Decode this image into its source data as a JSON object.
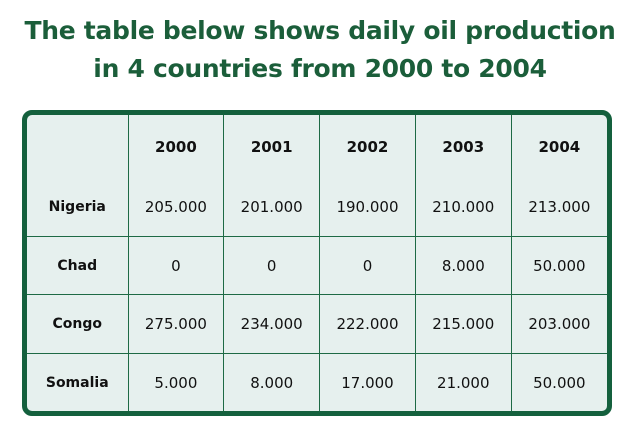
{
  "chart_data": {
    "type": "table",
    "title_lines": [
      "The table below shows daily oil production",
      "in 4 countries from 2000 to 2004"
    ],
    "corner": "",
    "columns": [
      "2000",
      "2001",
      "2002",
      "2003",
      "2004"
    ],
    "rows": [
      {
        "label": "Nigeria",
        "values": [
          "205.000",
          "201.000",
          "190.000",
          "210.000",
          "213.000"
        ]
      },
      {
        "label": "Chad",
        "values": [
          "0",
          "0",
          "0",
          "8.000",
          "50.000"
        ]
      },
      {
        "label": "Congo",
        "values": [
          "275.000",
          "234.000",
          "222.000",
          "215.000",
          "203.000"
        ]
      },
      {
        "label": "Somalia",
        "values": [
          "5.000",
          "8.000",
          "17.000",
          "21.000",
          "50.000"
        ]
      }
    ],
    "colors": {
      "title": "#1b5e3a",
      "border": "#14603d",
      "cell_background": "#e6f0ee"
    }
  }
}
